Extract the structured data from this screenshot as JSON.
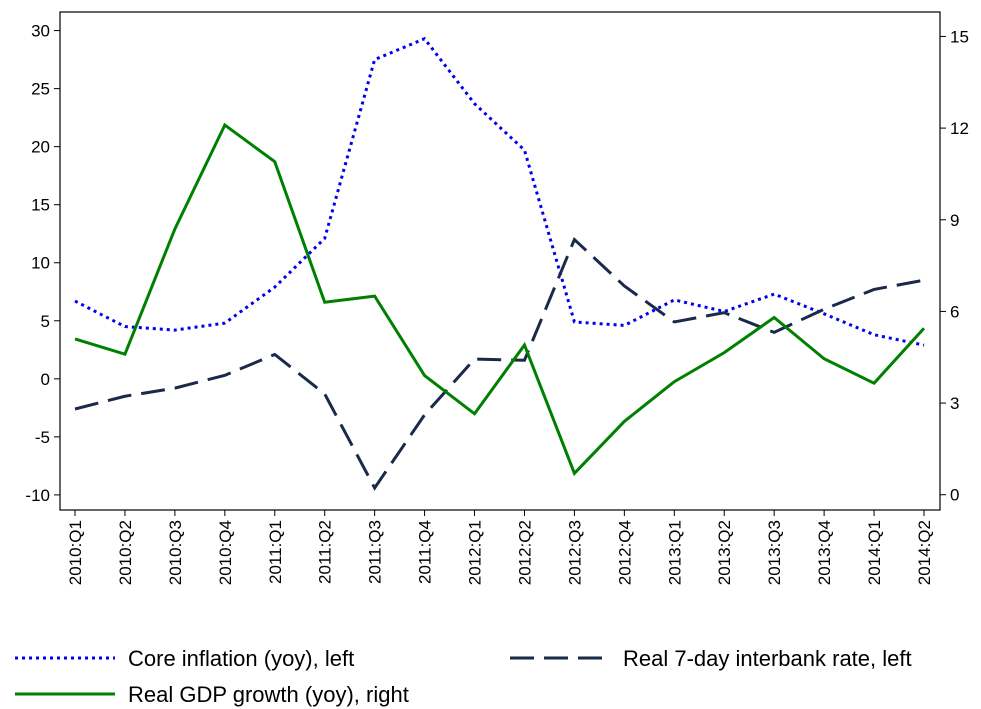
{
  "chart_data": {
    "type": "line",
    "categories": [
      "2010:Q1",
      "2010:Q2",
      "2010:Q3",
      "2010:Q4",
      "2011:Q1",
      "2011:Q2",
      "2011:Q3",
      "2011:Q4",
      "2012:Q1",
      "2012:Q2",
      "2012:Q3",
      "2012:Q4",
      "2013:Q1",
      "2013:Q2",
      "2013:Q3",
      "2013:Q4",
      "2014:Q1",
      "2014:Q2"
    ],
    "series": [
      {
        "name": "Core inflation (yoy), left",
        "color": "#0000ee",
        "dash": "dotted",
        "values": [
          6.7,
          4.5,
          4.2,
          4.8,
          7.9,
          12.1,
          27.5,
          29.3,
          23.7,
          19.7,
          4.9,
          4.6,
          6.8,
          5.8,
          7.3,
          5.6,
          3.8,
          2.9
        ]
      },
      {
        "name": "Real 7-day interbank rate, left",
        "color": "#1a2a4a",
        "dash": "long",
        "values": [
          -2.6,
          -1.5,
          -0.8,
          0.3,
          2.1,
          -1.3,
          -9.4,
          -3.1,
          1.7,
          1.6,
          12.0,
          8.0,
          4.9,
          5.7,
          4.0,
          6.0,
          7.7,
          8.5
        ]
      },
      {
        "name": "Real GDP growth (yoy), right",
        "color": "#008000",
        "dash": "solid",
        "axis": "y2",
        "values": [
          5.1,
          4.6,
          8.7,
          12.1,
          10.9,
          6.3,
          6.5,
          3.9,
          2.65,
          4.9,
          0.7,
          2.4,
          3.7,
          4.65,
          5.8,
          4.45,
          3.65,
          5.45
        ]
      }
    ],
    "ylim": [
      -11.3,
      31.6
    ],
    "yticks": [
      -10,
      -5,
      0,
      5,
      10,
      15,
      20,
      25,
      30
    ],
    "y2lim": [
      -0.5,
      15.8
    ],
    "y2ticks": [
      0,
      3,
      6,
      9,
      12,
      15
    ],
    "legend": "bottom"
  }
}
